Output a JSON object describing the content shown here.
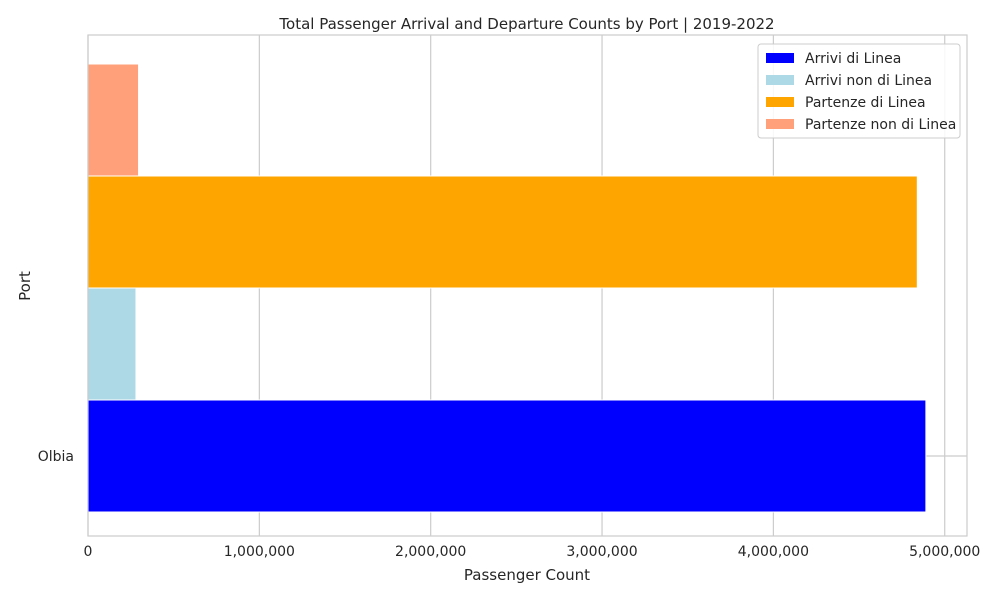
{
  "chart_data": {
    "type": "bar",
    "orientation": "horizontal",
    "title": "Total Passenger Arrival and Departure Counts by Port | 2019-2022",
    "xlabel": "Passenger Count",
    "ylabel": "Port",
    "categories": [
      "Olbia"
    ],
    "xlim": [
      0,
      5130000
    ],
    "x_ticks": [
      0,
      1000000,
      2000000,
      3000000,
      4000000,
      5000000
    ],
    "x_tick_labels": [
      "0",
      "1,000,000",
      "2,000,000",
      "3,000,000",
      "4,000,000",
      "5,000,000"
    ],
    "grid": true,
    "legend_position": "top-right",
    "series": [
      {
        "name": "Arrivi di Linea",
        "values": [
          4890000
        ],
        "color": "#0000ff"
      },
      {
        "name": "Arrivi non di Linea",
        "values": [
          280000
        ],
        "color": "#add8e6"
      },
      {
        "name": "Partenze di Linea",
        "values": [
          4840000
        ],
        "color": "#ffa500"
      },
      {
        "name": "Partenze non di Linea",
        "values": [
          295000
        ],
        "color": "#ffa07a"
      }
    ]
  }
}
